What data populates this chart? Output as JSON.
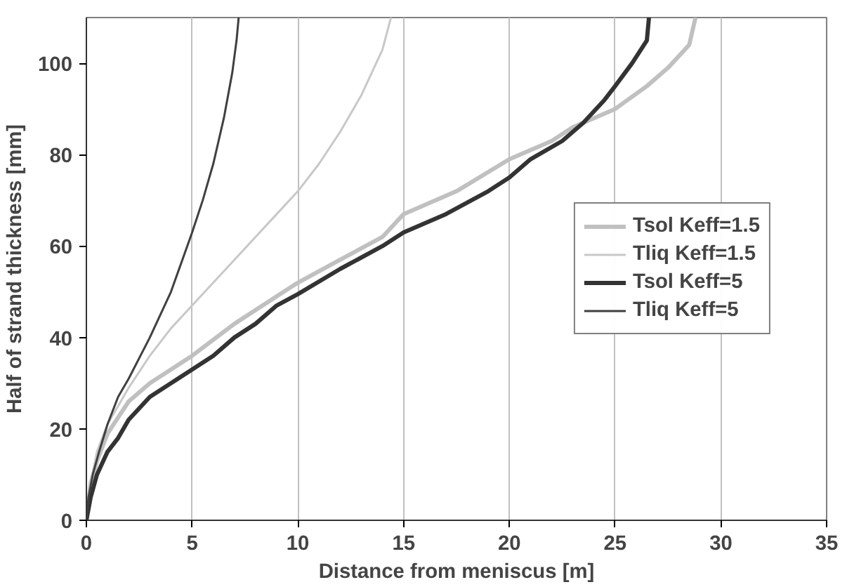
{
  "chart_data": {
    "type": "line",
    "xlabel": "Distance from meniscus [m]",
    "ylabel": "Half of strand thickness [mm]",
    "xlim": [
      0,
      35
    ],
    "ylim": [
      0,
      110
    ],
    "xticks": [
      0,
      5,
      10,
      15,
      20,
      25,
      30,
      35
    ],
    "yticks": [
      0,
      20,
      40,
      60,
      80,
      100
    ],
    "grid": "x",
    "legend": "right",
    "marker": "none",
    "line_style": "solid",
    "series": [
      {
        "name": "Tsol Keff=1.5",
        "color": "#c0c0c0",
        "x": [
          0,
          0.2,
          0.5,
          1,
          2,
          3,
          4,
          5,
          7,
          9,
          10,
          12,
          14,
          15,
          17.5,
          20,
          22,
          23,
          25,
          26.5,
          27.5,
          28.5,
          28.8
        ],
        "values": [
          0,
          8,
          13,
          19,
          26,
          30,
          33,
          36,
          43,
          49,
          52,
          57,
          62,
          67,
          72,
          79,
          83,
          86,
          90,
          95,
          99,
          104,
          110
        ]
      },
      {
        "name": "Tliq Keff=1.5",
        "color": "#c8c8c8",
        "x": [
          0,
          0.2,
          0.5,
          1,
          2,
          3,
          4,
          5,
          7,
          9,
          10,
          11,
          12,
          13,
          14,
          14.4
        ],
        "values": [
          0,
          8,
          15,
          21,
          29,
          36,
          42,
          47,
          57,
          67,
          72,
          78,
          85,
          93,
          103,
          110
        ]
      },
      {
        "name": "Tsol Keff=5",
        "color": "#333333",
        "x": [
          0,
          0.2,
          0.5,
          1,
          1.5,
          2,
          3,
          4,
          5,
          6,
          7,
          8,
          9,
          10,
          12,
          14,
          15,
          17,
          19,
          20,
          21,
          22.5,
          23.5,
          24.5,
          25,
          25.8,
          26.5,
          26.6
        ],
        "values": [
          0,
          5,
          10,
          15,
          18,
          22,
          27,
          30,
          33,
          36,
          40,
          43,
          47,
          49.5,
          55,
          60,
          63,
          67,
          72,
          75,
          79,
          83,
          87,
          92,
          95,
          100,
          105,
          110
        ]
      },
      {
        "name": "Tliq Keff=5",
        "color": "#404040",
        "x": [
          0,
          0.1,
          0.3,
          0.6,
          1,
          1.5,
          2,
          3,
          4,
          5,
          5.5,
          6,
          6.5,
          6.9,
          7.1,
          7.2
        ],
        "values": [
          0,
          5,
          10,
          15,
          21,
          27,
          31,
          40,
          50,
          63,
          70,
          78,
          88,
          98,
          105,
          110
        ]
      }
    ]
  }
}
